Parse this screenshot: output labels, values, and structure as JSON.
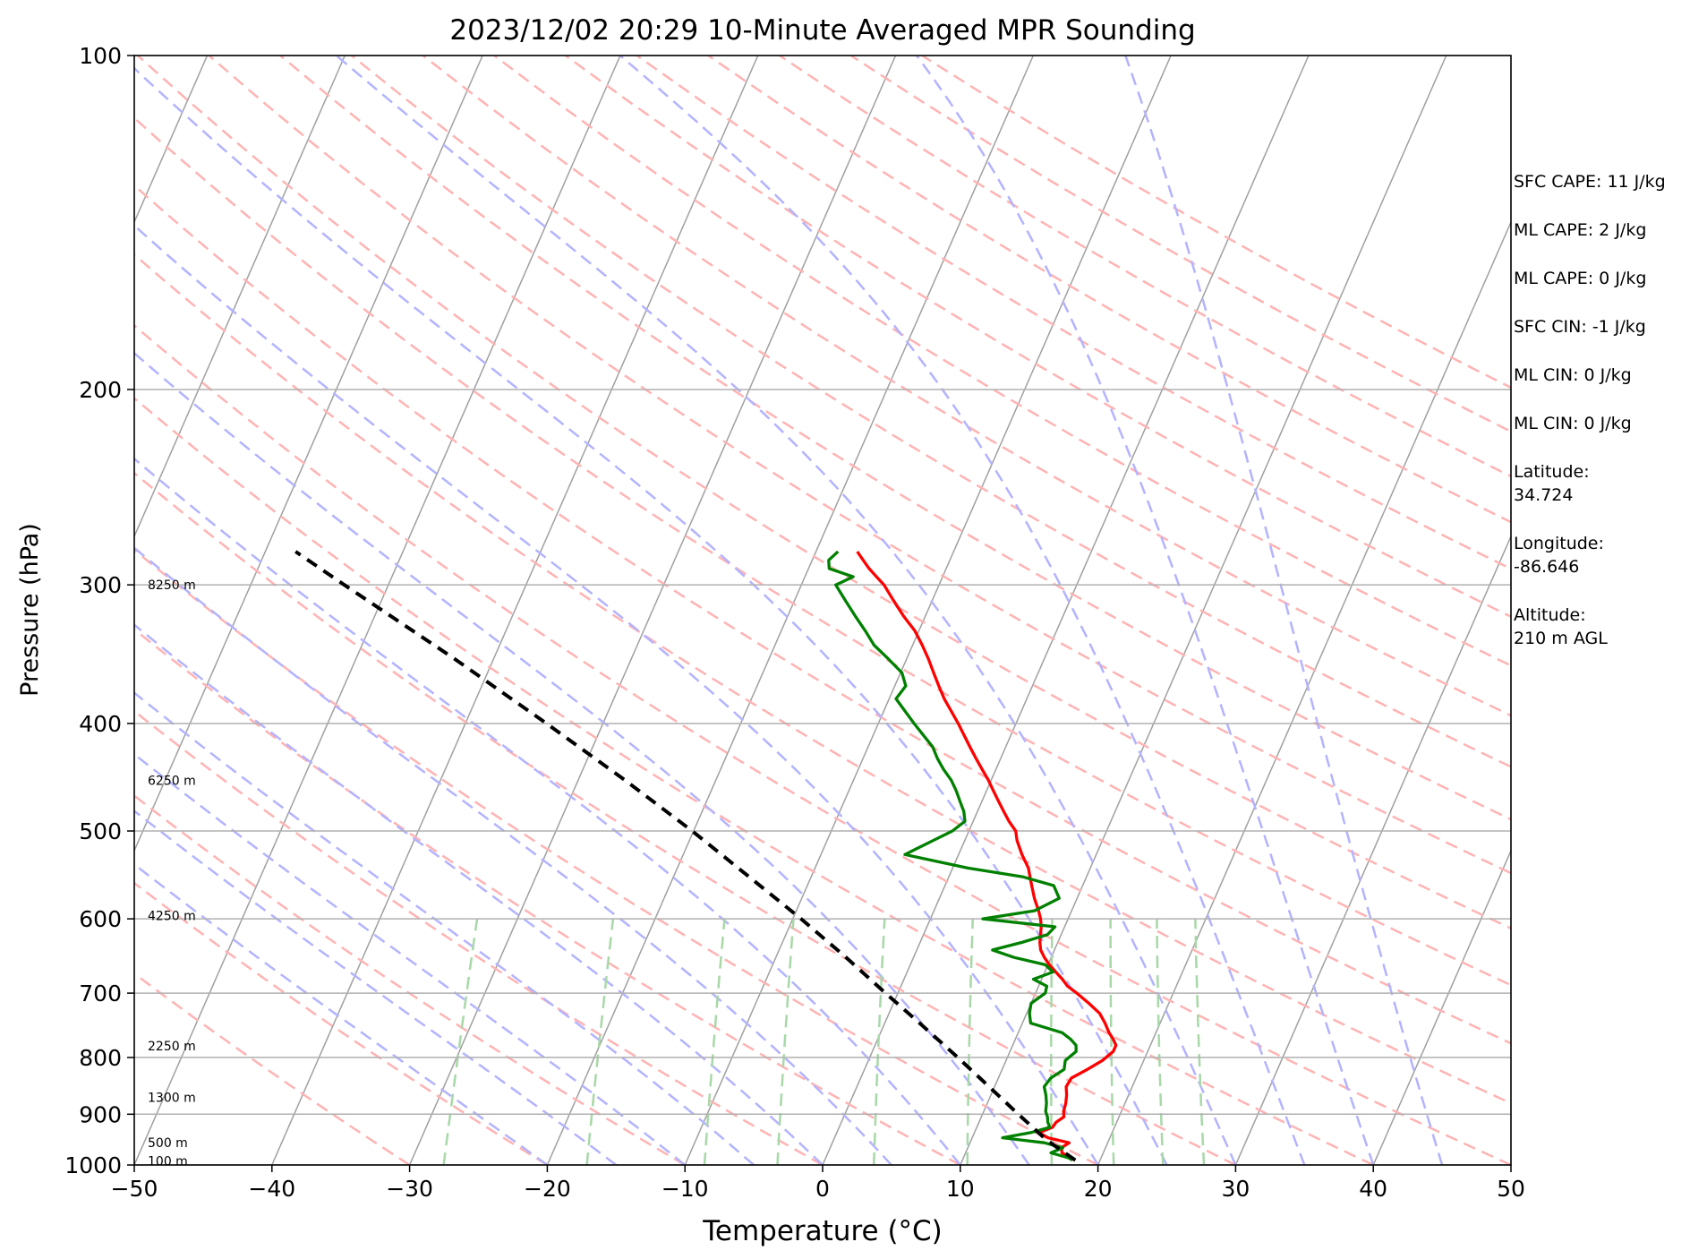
{
  "chart_data": {
    "type": "line",
    "subtype": "skew-T log-P",
    "title": "2023/12/02 20:29 10-Minute Averaged MPR Sounding",
    "xlabel": "Temperature (°C)",
    "ylabel": "Pressure (hPa)",
    "xlim": [
      -50,
      50
    ],
    "ylim": [
      1000,
      100
    ],
    "y_scale": "log",
    "x_ticks": [
      "−50",
      "−40",
      "−30",
      "−20",
      "−10",
      "0",
      "10",
      "20",
      "30",
      "40",
      "50"
    ],
    "y_ticks": [
      "100",
      "200",
      "300",
      "400",
      "500",
      "600",
      "700",
      "800",
      "900",
      "1000"
    ],
    "height_labels": [
      {
        "p": 300,
        "label": "8250 m"
      },
      {
        "p": 450,
        "label": "6250 m"
      },
      {
        "p": 596,
        "label": "4250 m"
      },
      {
        "p": 781,
        "label": "2250 m"
      },
      {
        "p": 869,
        "label": "1300 m"
      },
      {
        "p": 955,
        "label": "500 m"
      },
      {
        "p": 992,
        "label": "100 m"
      }
    ],
    "series": [
      {
        "color": "#ff0000",
        "p": [
          990,
          985,
          975,
          965,
          955,
          945,
          935,
          925,
          915,
          905,
          895,
          880,
          865,
          850,
          835,
          820,
          805,
          790,
          780,
          770,
          760,
          745,
          730,
          715,
          700,
          690,
          680,
          670,
          660,
          650,
          640,
          630,
          620,
          610,
          600,
          590,
          575,
          560,
          550,
          540,
          525,
          510,
          500,
          490,
          480,
          470,
          460,
          450,
          440,
          430,
          420,
          400,
          380,
          370,
          360,
          350,
          340,
          330,
          320,
          310,
          300,
          295,
          290,
          285,
          280
        ],
        "t": [
          18.2,
          17.8,
          17.0,
          16.8,
          17.2,
          15.5,
          14.7,
          15.5,
          15.6,
          16.0,
          15.8,
          15.7,
          15.5,
          15.2,
          15.3,
          16.2,
          17.0,
          17.5,
          17.5,
          17.1,
          16.6,
          16.0,
          15.3,
          14.2,
          13.0,
          12.1,
          11.5,
          10.8,
          10.1,
          9.5,
          9.0,
          8.7,
          8.5,
          8.3,
          8.0,
          7.6,
          6.9,
          6.3,
          5.9,
          5.5,
          4.6,
          3.8,
          3.4,
          2.6,
          1.9,
          1.2,
          0.5,
          -0.2,
          -1.0,
          -1.8,
          -2.6,
          -4.2,
          -6.0,
          -6.8,
          -7.6,
          -8.4,
          -9.3,
          -10.3,
          -11.6,
          -12.8,
          -14.0,
          -14.8,
          -15.6,
          -16.3,
          -17.0
        ]
      },
      {
        "color": "#008000",
        "p": [
          990,
          985,
          975,
          965,
          955,
          945,
          935,
          925,
          915,
          905,
          895,
          880,
          865,
          850,
          835,
          820,
          805,
          790,
          780,
          770,
          760,
          745,
          730,
          715,
          700,
          690,
          680,
          670,
          660,
          650,
          640,
          630,
          620,
          610,
          600,
          590,
          575,
          560,
          550,
          540,
          525,
          510,
          500,
          490,
          480,
          470,
          460,
          450,
          440,
          430,
          420,
          400,
          380,
          370,
          360,
          350,
          340,
          330,
          320,
          310,
          300,
          295,
          290,
          285,
          280
        ],
        "t": [
          18.0,
          17.6,
          16.2,
          16.9,
          15.4,
          12.2,
          14.1,
          15.3,
          15.0,
          14.8,
          14.5,
          14.3,
          14.0,
          13.6,
          13.8,
          14.5,
          14.3,
          14.8,
          14.6,
          14.0,
          13.2,
          10.6,
          10.2,
          10.0,
          10.7,
          10.6,
          9.4,
          10.6,
          9.8,
          7.3,
          5.5,
          7.4,
          9.0,
          9.3,
          3.8,
          7.3,
          8.7,
          7.9,
          5.4,
          1.1,
          -3.9,
          -2.3,
          -1.2,
          -0.6,
          -1.0,
          -1.6,
          -2.2,
          -2.9,
          -3.8,
          -4.6,
          -5.3,
          -7.4,
          -9.5,
          -9.2,
          -9.9,
          -11.3,
          -12.8,
          -13.9,
          -15.1,
          -16.3,
          -17.5,
          -16.5,
          -18.5,
          -18.8,
          -18.4
        ]
      },
      {
        "color": "#000000",
        "style": "dashed",
        "p": [
          990,
          950,
          900,
          850,
          800,
          750,
          700,
          650,
          600,
          550,
          500,
          450,
          400,
          350,
          300,
          280
        ],
        "t": [
          18.2,
          15.5,
          12.6,
          9.6,
          6.4,
          2.9,
          -0.9,
          -4.9,
          -9.4,
          -14.5,
          -20.1,
          -26.6,
          -34.1,
          -42.8,
          -53.2,
          -57.8
        ]
      }
    ]
  },
  "info": {
    "sfc_cape": "SFC CAPE: 11 J/kg",
    "ml_cape": "ML CAPE: 2 J/kg",
    "ml_cape_2": "ML CAPE: 0 J/kg",
    "sfc_cin": "SFC CIN: -1 J/kg",
    "ml_cin": "ML CIN: 0 J/kg",
    "ml_cin_2": "ML CIN: 0 J/kg",
    "latitude": "Latitude:\n34.724",
    "longitude": "Longitude:\n-86.646",
    "altitude": "Altitude:\n210 m AGL"
  },
  "colors": {
    "isotherm": "#a0a0a0",
    "dry_adiabat": "#ffb3b3",
    "moist_adiabat": "#b3b3ff",
    "mixing_ratio": "#a8d8a8",
    "temperature": "#ff0000",
    "dewpoint": "#008000",
    "parcel": "#000000"
  }
}
